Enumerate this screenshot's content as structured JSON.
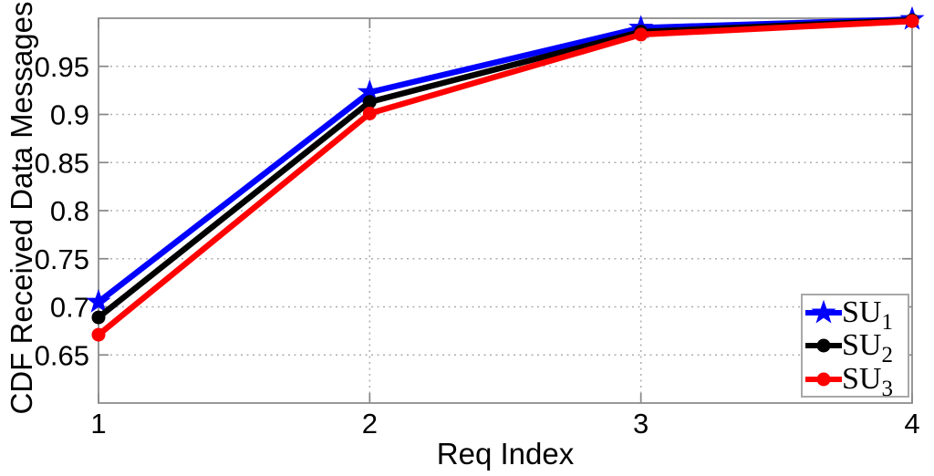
{
  "chart_data": {
    "type": "line",
    "title": "",
    "xlabel": "Req Index",
    "ylabel": "CDF Received Data Messages",
    "x": [
      1,
      2,
      3,
      4
    ],
    "series": [
      {
        "name": "SU",
        "sub": "1",
        "label": "SU1",
        "color": "#0000ff",
        "marker": "star",
        "values": [
          0.705,
          0.923,
          0.99,
          0.999
        ]
      },
      {
        "name": "SU",
        "sub": "2",
        "label": "SU2",
        "color": "#000000",
        "marker": "circle",
        "values": [
          0.689,
          0.913,
          0.986,
          0.998
        ]
      },
      {
        "name": "SU",
        "sub": "3",
        "label": "SU3",
        "color": "#ff0000",
        "marker": "circle",
        "values": [
          0.671,
          0.901,
          0.983,
          0.997
        ]
      }
    ],
    "xlim": [
      1,
      4
    ],
    "ylim": [
      0.6,
      1.0
    ],
    "xticks": [
      1,
      2,
      3,
      4
    ],
    "xtick_labels": [
      "1",
      "2",
      "3",
      "4"
    ],
    "yticks": [
      0.65,
      0.7,
      0.75,
      0.8,
      0.85,
      0.9,
      0.95
    ],
    "ytick_labels": [
      "0.65",
      "0.7",
      "0.75",
      "0.8",
      "0.85",
      "0.9",
      "0.95"
    ],
    "grid": "dotted",
    "legend_position": "lower right"
  }
}
